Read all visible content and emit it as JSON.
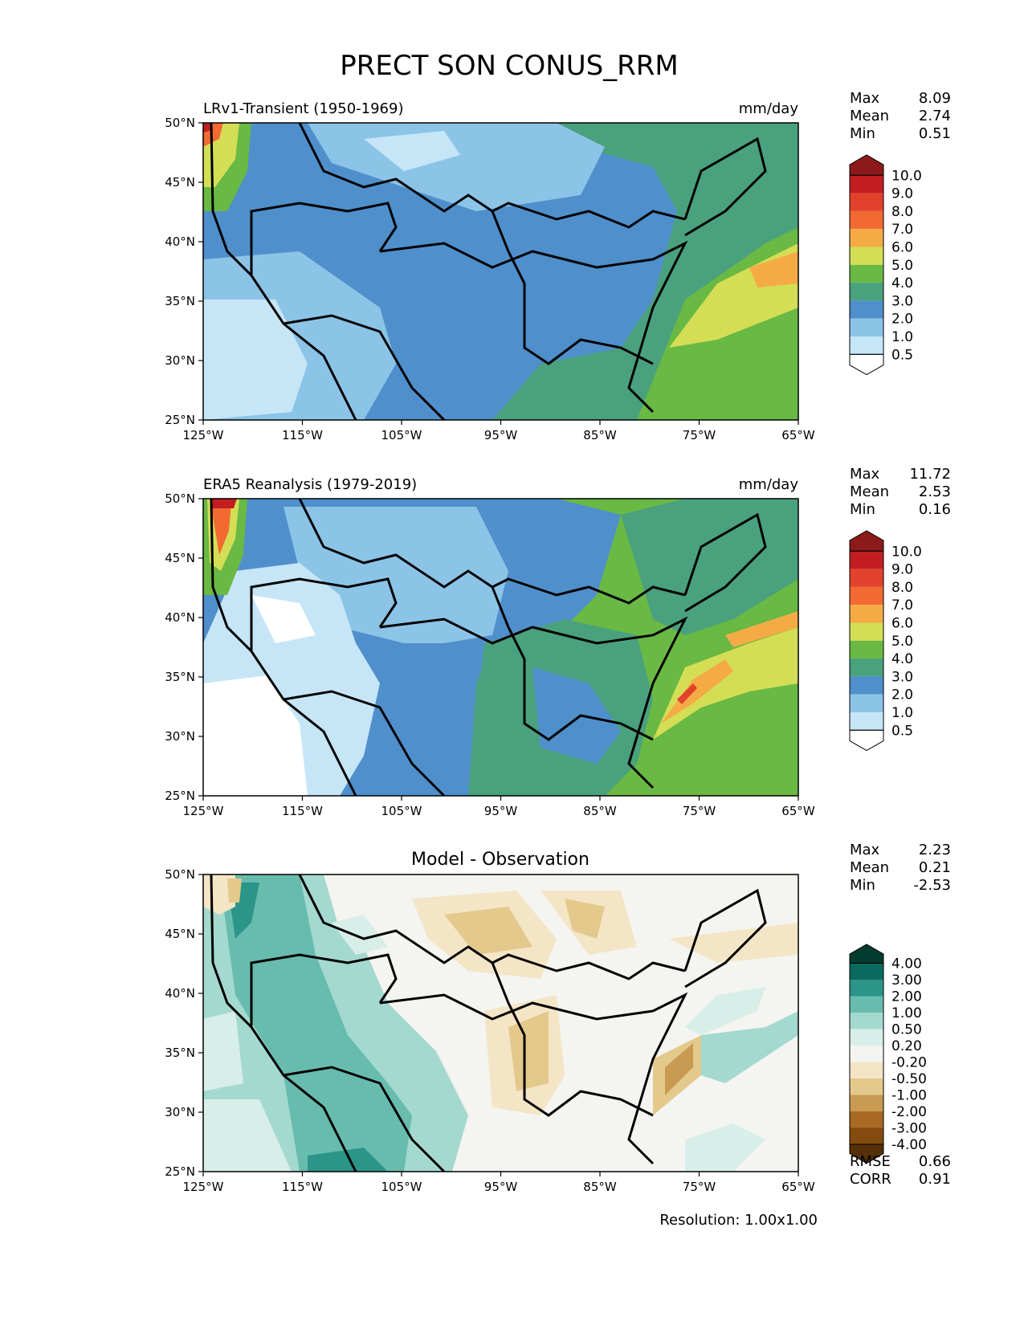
{
  "figure_title": "PRECT SON CONUS_RRM",
  "resolution_label": "Resolution: 1.00x1.00",
  "chart_data": [
    {
      "type": "heatmap",
      "id": "model",
      "title_left": "LRv1-Transient (1950-1969)",
      "title_right": "mm/day",
      "title_center": "",
      "x_ticks": [
        "125°W",
        "115°W",
        "105°W",
        "95°W",
        "85°W",
        "75°W",
        "65°W"
      ],
      "y_ticks": [
        "25°N",
        "30°N",
        "35°N",
        "40°N",
        "45°N",
        "50°N"
      ],
      "xlim": [
        -125,
        -65
      ],
      "ylim": [
        25,
        50
      ],
      "stats": [
        {
          "label": "Max",
          "value": "8.09"
        },
        {
          "label": "Mean",
          "value": "2.74"
        },
        {
          "label": "Min",
          "value": "0.51"
        }
      ],
      "colorbar": {
        "levels": [
          "10.0",
          "9.0",
          "8.0",
          "7.0",
          "6.0",
          "5.0",
          "4.0",
          "3.0",
          "2.0",
          "1.0",
          "0.5"
        ],
        "colors": [
          "#8d1a1a",
          "#c21e22",
          "#e2422c",
          "#f26a32",
          "#f5ab45",
          "#d4de55",
          "#69b944",
          "#4aa17e",
          "#4f8fcc",
          "#8cc4e8",
          "#c6e6f7",
          "#ffffff"
        ]
      },
      "extra_stats": []
    },
    {
      "type": "heatmap",
      "id": "obs",
      "title_left": "ERA5 Reanalysis (1979-2019)",
      "title_right": "mm/day",
      "title_center": "",
      "x_ticks": [
        "125°W",
        "115°W",
        "105°W",
        "95°W",
        "85°W",
        "75°W",
        "65°W"
      ],
      "y_ticks": [
        "25°N",
        "30°N",
        "35°N",
        "40°N",
        "45°N",
        "50°N"
      ],
      "xlim": [
        -125,
        -65
      ],
      "ylim": [
        25,
        50
      ],
      "stats": [
        {
          "label": "Max",
          "value": "11.72"
        },
        {
          "label": "Mean",
          "value": "2.53"
        },
        {
          "label": "Min",
          "value": "0.16"
        }
      ],
      "colorbar": {
        "levels": [
          "10.0",
          "9.0",
          "8.0",
          "7.0",
          "6.0",
          "5.0",
          "4.0",
          "3.0",
          "2.0",
          "1.0",
          "0.5"
        ],
        "colors": [
          "#8d1a1a",
          "#c21e22",
          "#e2422c",
          "#f26a32",
          "#f5ab45",
          "#d4de55",
          "#69b944",
          "#4aa17e",
          "#4f8fcc",
          "#8cc4e8",
          "#c6e6f7",
          "#ffffff"
        ]
      },
      "extra_stats": []
    },
    {
      "type": "heatmap",
      "id": "diff",
      "title_left": "",
      "title_right": "",
      "title_center": "Model - Observation",
      "x_ticks": [
        "125°W",
        "115°W",
        "105°W",
        "95°W",
        "85°W",
        "75°W",
        "65°W"
      ],
      "y_ticks": [
        "25°N",
        "30°N",
        "35°N",
        "40°N",
        "45°N",
        "50°N"
      ],
      "xlim": [
        -125,
        -65
      ],
      "ylim": [
        25,
        50
      ],
      "stats": [
        {
          "label": "Max",
          "value": "2.23"
        },
        {
          "label": "Mean",
          "value": "0.21"
        },
        {
          "label": "Min",
          "value": "-2.53"
        }
      ],
      "colorbar": {
        "levels": [
          "4.00",
          "3.00",
          "2.00",
          "1.00",
          "0.50",
          "0.20",
          "-0.20",
          "-0.50",
          "-1.00",
          "-2.00",
          "-3.00",
          "-4.00"
        ],
        "colors": [
          "#013c30",
          "#0b6a5f",
          "#2c9589",
          "#68bcae",
          "#a4d9cf",
          "#d8eee9",
          "#f4f4f1",
          "#f4e5c6",
          "#e4c98c",
          "#c99a51",
          "#a76923",
          "#834c0e",
          "#553109"
        ]
      },
      "extra_stats": [
        {
          "label": "RMSE",
          "value": "0.66"
        },
        {
          "label": "CORR",
          "value": "0.91"
        }
      ]
    }
  ]
}
